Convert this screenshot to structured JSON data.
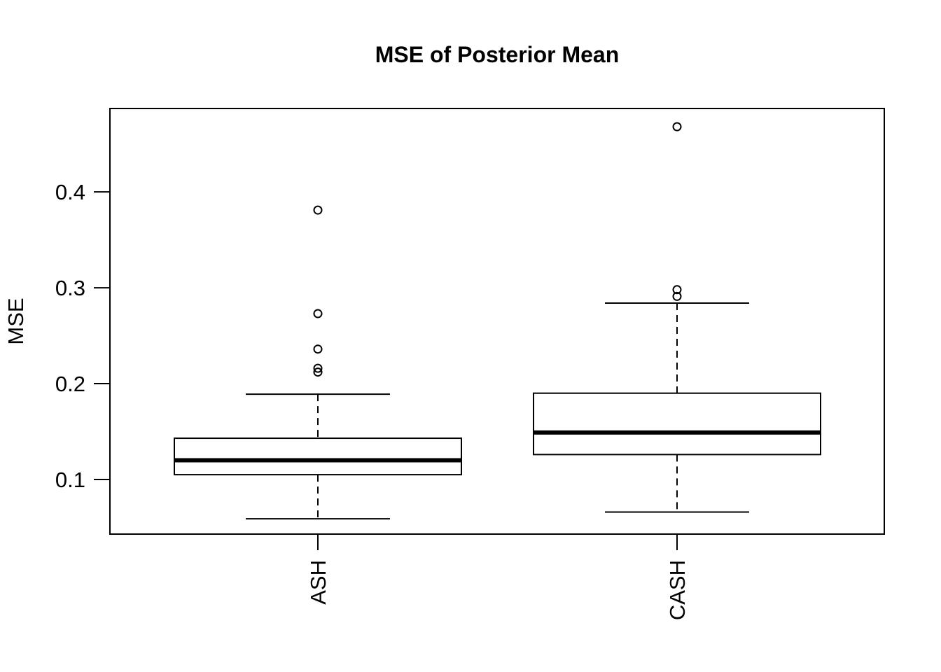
{
  "chart_data": {
    "type": "boxplot",
    "title": "MSE of Posterior Mean",
    "xlabel": "",
    "ylabel": "MSE",
    "categories": [
      "ASH",
      "CASH"
    ],
    "yticks": [
      0.1,
      0.2,
      0.3,
      0.4
    ],
    "ylim": [
      0.043,
      0.487
    ],
    "grid": false,
    "legend": "none",
    "orientation": "vertical",
    "whisker_style": "dashed",
    "outlier_marker": "open-circle",
    "colors": {
      "stroke": "#000000",
      "box_fill": "#ffffff",
      "background": "#ffffff"
    },
    "series": [
      {
        "name": "ASH",
        "whisker_low": 0.059,
        "q1": 0.105,
        "median": 0.12,
        "q3": 0.143,
        "whisker_high": 0.189,
        "outliers": [
          0.212,
          0.216,
          0.236,
          0.273,
          0.381
        ]
      },
      {
        "name": "CASH",
        "whisker_low": 0.066,
        "q1": 0.126,
        "median": 0.149,
        "q3": 0.19,
        "whisker_high": 0.284,
        "outliers": [
          0.291,
          0.298,
          0.468
        ]
      }
    ]
  }
}
